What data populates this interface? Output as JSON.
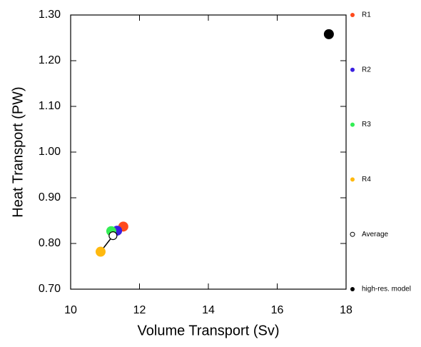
{
  "chart_data": {
    "type": "scatter",
    "x_label": "Volume Transport (Sv)",
    "y_label": "Heat Transport (PW)",
    "xlim": [
      10,
      18
    ],
    "xticks": [
      10,
      12,
      14,
      16,
      18
    ],
    "ylim": [
      0.7,
      1.3
    ],
    "yticks": [
      {
        "value": 0.7,
        "label": "0.70"
      },
      {
        "value": 0.8,
        "label": "0.80"
      },
      {
        "value": 0.9,
        "label": "0.90"
      },
      {
        "value": 1.0,
        "label": "1.00"
      },
      {
        "value": 1.1,
        "label": "1.10"
      },
      {
        "value": 1.2,
        "label": "1.20"
      },
      {
        "value": 1.3,
        "label": "1.30"
      }
    ],
    "series": [
      {
        "name": "R1",
        "color": "#ff4a1c",
        "x": [
          11.53
        ],
        "values": [
          0.837
        ]
      },
      {
        "name": "R2",
        "color": "#3a1fe0",
        "x": [
          11.35
        ],
        "values": [
          0.828
        ]
      },
      {
        "name": "R3",
        "color": "#33ee55",
        "x": [
          11.18
        ],
        "values": [
          0.827
        ]
      },
      {
        "name": "R4",
        "color": "#ffb90f",
        "x": [
          10.87
        ],
        "values": [
          0.782
        ]
      },
      {
        "name": "Average",
        "color": "#000000",
        "hollow": true,
        "x": [
          11.23
        ],
        "values": [
          0.817
        ]
      },
      {
        "name": "high-res. model",
        "color": "#000000",
        "x": [
          17.5
        ],
        "values": [
          1.258
        ]
      }
    ]
  }
}
